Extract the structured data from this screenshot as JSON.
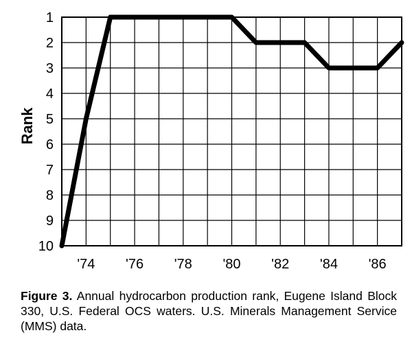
{
  "chart_data": {
    "type": "line",
    "ylabel": "Rank",
    "xlabel": "",
    "x": [
      1973,
      1974,
      1975,
      1976,
      1977,
      1978,
      1979,
      1980,
      1981,
      1982,
      1983,
      1984,
      1985,
      1986,
      1987
    ],
    "series": [
      {
        "values": [
          10,
          5,
          1,
          1,
          1,
          1,
          1,
          1,
          2,
          2,
          2,
          3,
          3,
          3,
          2
        ]
      }
    ],
    "xlim": [
      1973,
      1987
    ],
    "ylim": [
      1,
      10
    ],
    "y_inverted": true,
    "x_tick_values": [
      1974,
      1976,
      1978,
      1980,
      1982,
      1984,
      1986
    ],
    "x_tick_labels": [
      "'74",
      "'76",
      "'78",
      "'80",
      "'82",
      "'84",
      "'86"
    ],
    "y_tick_labels": [
      "1",
      "2",
      "3",
      "4",
      "5",
      "6",
      "7",
      "8",
      "9",
      "10"
    ],
    "grid": true,
    "line_color": "#000000"
  },
  "caption": {
    "label": "Figure 3.",
    "text": "Annual hydrocarbon production rank, Eugene Island Block 330, U.S. Federal OCS waters. U.S. Minerals Management Service (MMS) data."
  }
}
